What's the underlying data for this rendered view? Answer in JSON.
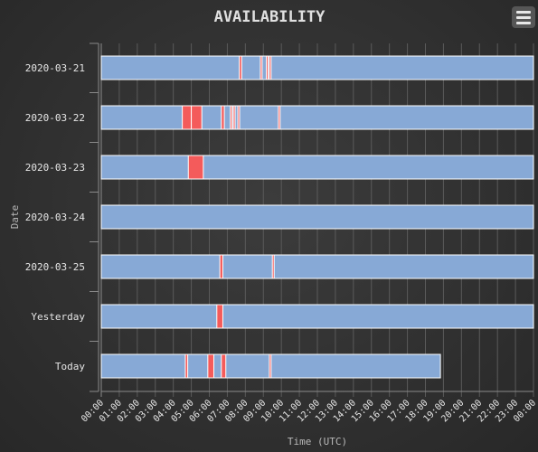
{
  "chart_data": {
    "type": "timeline",
    "title": "AVAILABILITY",
    "xlabel": "Time (UTC)",
    "ylabel": "Date",
    "x_range": [
      "00:00",
      "24:00"
    ],
    "x_ticks": [
      "00:00",
      "01:00",
      "02:00",
      "03:00",
      "04:00",
      "05:00",
      "06:00",
      "07:00",
      "08:00",
      "09:00",
      "10:00",
      "11:00",
      "12:00",
      "13:00",
      "14:00",
      "15:00",
      "16:00",
      "17:00",
      "18:00",
      "19:00",
      "20:00",
      "21:00",
      "22:00",
      "23:00",
      "00:00"
    ],
    "categories": [
      "2020-03-21",
      "2020-03-22",
      "2020-03-23",
      "2020-03-24",
      "2020-03-25",
      "Yesterday",
      "Today"
    ],
    "status_colors": {
      "up": "#87a9d6",
      "down": "#f45b5b"
    },
    "rows": [
      {
        "date": "2020-03-21",
        "end": "24:00",
        "outages": [
          [
            "07:40",
            "07:48"
          ],
          [
            "08:50",
            "08:55"
          ],
          [
            "09:10",
            "09:15"
          ],
          [
            "09:20",
            "09:25"
          ]
        ]
      },
      {
        "date": "2020-03-22",
        "end": "24:00",
        "outages": [
          [
            "04:30",
            "05:00"
          ],
          [
            "05:00",
            "05:35"
          ],
          [
            "06:40",
            "06:50"
          ],
          [
            "07:10",
            "07:15"
          ],
          [
            "07:20",
            "07:25"
          ],
          [
            "07:35",
            "07:40"
          ],
          [
            "09:50",
            "09:55"
          ]
        ]
      },
      {
        "date": "2020-03-23",
        "end": "24:00",
        "outages": [
          [
            "04:50",
            "05:40"
          ]
        ]
      },
      {
        "date": "2020-03-24",
        "end": "24:00",
        "outages": []
      },
      {
        "date": "2020-03-25",
        "end": "24:00",
        "outages": [
          [
            "06:35",
            "06:45"
          ],
          [
            "09:30",
            "09:35"
          ]
        ]
      },
      {
        "date": "Yesterday",
        "end": "24:00",
        "outages": [
          [
            "06:25",
            "06:45"
          ]
        ]
      },
      {
        "date": "Today",
        "end": "18:50",
        "outages": [
          [
            "04:40",
            "04:48"
          ],
          [
            "05:55",
            "06:15"
          ],
          [
            "06:40",
            "06:55"
          ],
          [
            "09:20",
            "09:25"
          ]
        ]
      }
    ]
  },
  "ui": {
    "menu_icon": "hamburger-menu-icon"
  }
}
